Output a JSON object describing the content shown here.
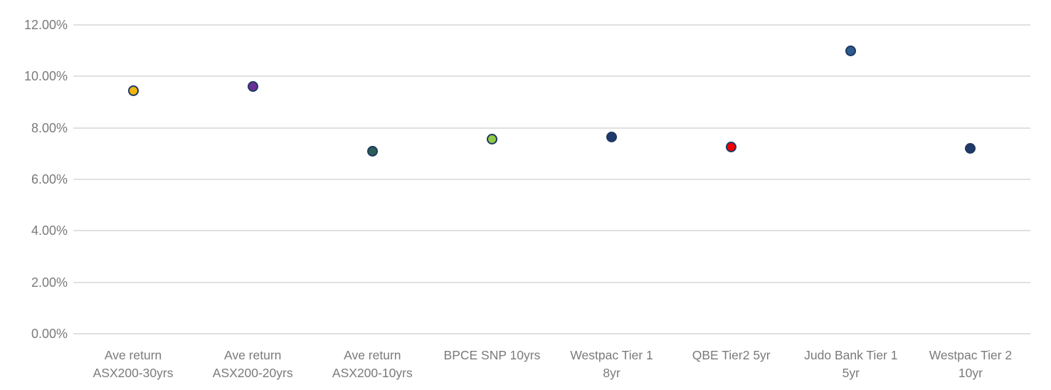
{
  "chart_data": {
    "type": "scatter",
    "categories": [
      "Ave return ASX200-30yrs",
      "Ave return ASX200-20yrs",
      "Ave return ASX200-10yrs",
      "BPCE SNP 10yrs",
      "Westpac Tier 1 8yr",
      "QBE Tier2 5yr",
      "Judo Bank Tier 1 5yr",
      "Westpac Tier 2 10yr"
    ],
    "category_label_lines": [
      [
        "Ave return",
        "ASX200-30yrs"
      ],
      [
        "Ave return",
        "ASX200-20yrs"
      ],
      [
        "Ave return",
        "ASX200-10yrs"
      ],
      [
        "BPCE SNP 10yrs"
      ],
      [
        "Westpac Tier 1",
        "8yr"
      ],
      [
        "QBE Tier2 5yr"
      ],
      [
        "Judo Bank Tier 1",
        "5yr"
      ],
      [
        "Westpac Tier 2",
        "10yr"
      ]
    ],
    "values": [
      9.45,
      9.6,
      7.1,
      7.55,
      7.65,
      7.25,
      11.0,
      7.2
    ],
    "point_colors": [
      "#F2B50D",
      "#6B2E94",
      "#2B5E52",
      "#8FCB44",
      "#1F3A68",
      "#F40000",
      "#2E5B8F",
      "#1F3A68"
    ],
    "marker_border_color": "#1F3864",
    "title": "",
    "xlabel": "",
    "ylabel": "",
    "ylim": [
      0,
      12
    ],
    "yticks": [
      0,
      2,
      4,
      6,
      8,
      10,
      12
    ],
    "ytick_labels": [
      "0.00%",
      "2.00%",
      "4.00%",
      "6.00%",
      "8.00%",
      "10.00%",
      "12.00%"
    ],
    "grid": true,
    "grid_color": "#E0E0E0",
    "axis_label_color": "#7A7A7A",
    "legend_position": "none"
  }
}
